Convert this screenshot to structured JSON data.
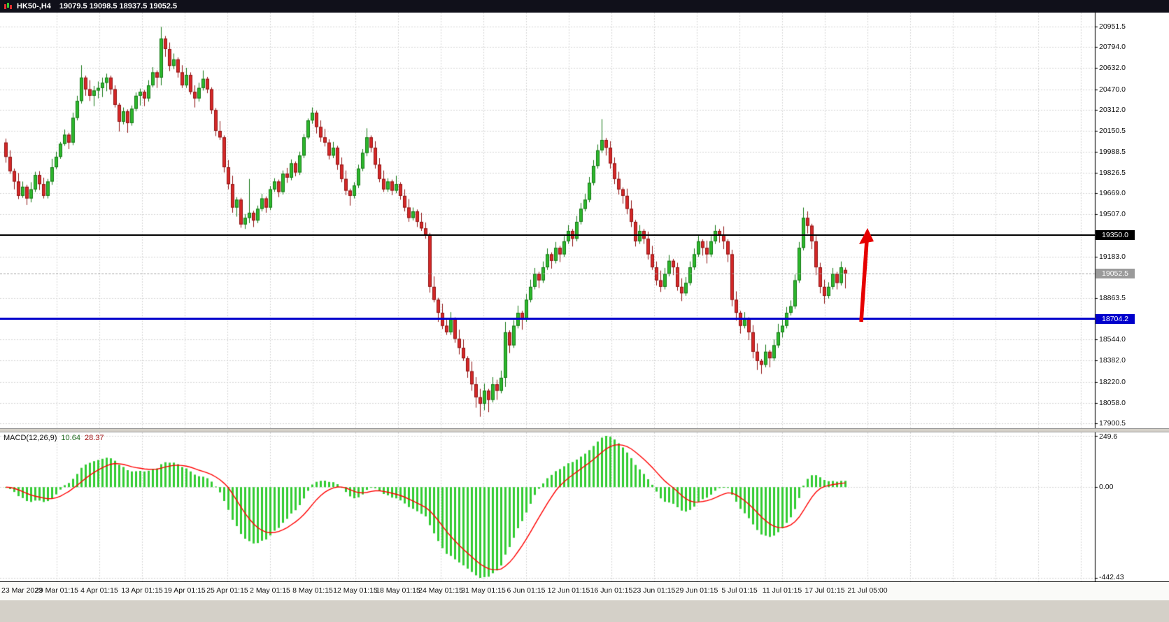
{
  "titlebar": {
    "symbol_timeframe": "HK50-,H4",
    "ohlc_readout": "19079.5 19098.5 18937.5 19052.5"
  },
  "macd_panel": {
    "label": "MACD(12,26,9)",
    "main_value": "10.64",
    "signal_value": "28.37"
  },
  "colors": {
    "window_bg": "#d4d0c8",
    "titlebar_bg": "#10101a",
    "titlebar_text": "#ffffff",
    "chart_bg": "#ffffff",
    "grid": "#d6d6d6",
    "axis_text": "#111111",
    "bull_fill": "#2db82d",
    "bull_edge": "#157815",
    "bear_fill": "#d62828",
    "bear_edge": "#8f1414",
    "macd_histogram": "#33cc33",
    "macd_signal": "#ff0000",
    "arrow": "#e60000",
    "resistance_line": "#000000",
    "support_line": "#0000cc",
    "bid_tag": "#9a9a9a"
  },
  "chart_data": {
    "type": "candlestick",
    "title": "HK50-,H4",
    "symbol": "HK50-",
    "timeframe": "H4",
    "last_candle_ohlc": [
      19079.5,
      19098.5,
      18937.5,
      19052.5
    ],
    "grid": true,
    "y_axis": {
      "side": "right",
      "visible_range": [
        17862,
        21060
      ],
      "tick_labels": [
        "20951.5",
        "20794.0",
        "20632.0",
        "20470.0",
        "20312.0",
        "20150.5",
        "19988.5",
        "19826.5",
        "19669.0",
        "19507.0",
        "19183.0",
        "18863.5",
        "18544.0",
        "18382.0",
        "18220.0",
        "18058.0",
        "17900.5"
      ]
    },
    "x_axis": {
      "tick_labels": [
        "23 Mar 2023",
        "29 Mar 01:15",
        "4 Apr 01:15",
        "13 Apr 01:15",
        "19 Apr 01:15",
        "25 Apr 01:15",
        "2 May 01:15",
        "8 May 01:15",
        "12 May 01:15",
        "18 May 01:15",
        "24 May 01:15",
        "31 May 01:15",
        "6 Jun 01:15",
        "12 Jun 01:15",
        "16 Jun 01:15",
        "23 Jun 01:15",
        "29 Jun 01:15",
        "5 Jul 01:15",
        "11 Jul 01:15",
        "17 Jul 01:15",
        "21 Jul 05:00"
      ]
    },
    "candles": [
      [
        20060,
        20090,
        19905,
        19950
      ],
      [
        19950,
        20000,
        19820,
        19840
      ],
      [
        19840,
        19860,
        19700,
        19760
      ],
      [
        19760,
        19825,
        19625,
        19650
      ],
      [
        19650,
        19760,
        19635,
        19720
      ],
      [
        19720,
        19735,
        19580,
        19630
      ],
      [
        19630,
        19755,
        19600,
        19700
      ],
      [
        19700,
        19835,
        19680,
        19810
      ],
      [
        19810,
        19840,
        19695,
        19740
      ],
      [
        19740,
        19790,
        19630,
        19650
      ],
      [
        19650,
        19780,
        19630,
        19760
      ],
      [
        19760,
        19935,
        19735,
        19870
      ],
      [
        19870,
        19990,
        19855,
        19950
      ],
      [
        19950,
        20065,
        19935,
        20050
      ],
      [
        20050,
        20160,
        20035,
        20120
      ],
      [
        20120,
        20135,
        20010,
        20060
      ],
      [
        20060,
        20290,
        20040,
        20250
      ],
      [
        20250,
        20420,
        20230,
        20380
      ],
      [
        20380,
        20655,
        20360,
        20560
      ],
      [
        20560,
        20575,
        20420,
        20470
      ],
      [
        20470,
        20540,
        20380,
        20420
      ],
      [
        20420,
        20495,
        20340,
        20460
      ],
      [
        20460,
        20530,
        20400,
        20480
      ],
      [
        20480,
        20560,
        20410,
        20520
      ],
      [
        20520,
        20590,
        20455,
        20560
      ],
      [
        20560,
        20575,
        20430,
        20470
      ],
      [
        20470,
        20500,
        20330,
        20350
      ],
      [
        20350,
        20365,
        20145,
        20220
      ],
      [
        20220,
        20330,
        20200,
        20300
      ],
      [
        20300,
        20315,
        20135,
        20210
      ],
      [
        20210,
        20345,
        20190,
        20320
      ],
      [
        20320,
        20445,
        20300,
        20420
      ],
      [
        20420,
        20475,
        20345,
        20450
      ],
      [
        20450,
        20465,
        20340,
        20400
      ],
      [
        20400,
        20540,
        20375,
        20500
      ],
      [
        20500,
        20640,
        20485,
        20600
      ],
      [
        20600,
        20615,
        20480,
        20560
      ],
      [
        20560,
        20950,
        20500,
        20860
      ],
      [
        20860,
        20880,
        20720,
        20780
      ],
      [
        20780,
        20830,
        20610,
        20650
      ],
      [
        20650,
        20745,
        20625,
        20700
      ],
      [
        20700,
        20715,
        20560,
        20600
      ],
      [
        20600,
        20655,
        20480,
        20500
      ],
      [
        20500,
        20635,
        20480,
        20580
      ],
      [
        20580,
        20600,
        20430,
        20450
      ],
      [
        20450,
        20500,
        20330,
        20400
      ],
      [
        20400,
        20520,
        20375,
        20480
      ],
      [
        20480,
        20615,
        20460,
        20550
      ],
      [
        20550,
        20565,
        20440,
        20470
      ],
      [
        20470,
        20485,
        20280,
        20310
      ],
      [
        20310,
        20325,
        20110,
        20150
      ],
      [
        20150,
        20225,
        20080,
        20100
      ],
      [
        20100,
        20115,
        19830,
        19870
      ],
      [
        19870,
        19925,
        19700,
        19740
      ],
      [
        19740,
        19805,
        19520,
        19560
      ],
      [
        19560,
        19640,
        19490,
        19620
      ],
      [
        19620,
        19635,
        19405,
        19430
      ],
      [
        19430,
        19510,
        19395,
        19480
      ],
      [
        19480,
        19780,
        19440,
        19520
      ],
      [
        19520,
        19535,
        19410,
        19460
      ],
      [
        19460,
        19575,
        19440,
        19550
      ],
      [
        19550,
        19665,
        19530,
        19630
      ],
      [
        19630,
        19645,
        19520,
        19560
      ],
      [
        19560,
        19725,
        19540,
        19700
      ],
      [
        19700,
        19785,
        19680,
        19760
      ],
      [
        19760,
        19775,
        19640,
        19680
      ],
      [
        19680,
        19845,
        19660,
        19820
      ],
      [
        19820,
        19865,
        19750,
        19790
      ],
      [
        19790,
        19930,
        19770,
        19900
      ],
      [
        19900,
        19915,
        19800,
        19830
      ],
      [
        19830,
        19990,
        19810,
        19960
      ],
      [
        19960,
        20125,
        19940,
        20100
      ],
      [
        20100,
        20245,
        20085,
        20230
      ],
      [
        20230,
        20330,
        20205,
        20290
      ],
      [
        20290,
        20305,
        20130,
        20180
      ],
      [
        20180,
        20230,
        20065,
        20100
      ],
      [
        20100,
        20165,
        20030,
        20060
      ],
      [
        20060,
        20085,
        19930,
        19960
      ],
      [
        19960,
        20065,
        19940,
        20020
      ],
      [
        20020,
        20035,
        19850,
        19890
      ],
      [
        19890,
        19945,
        19755,
        19780
      ],
      [
        19780,
        19845,
        19655,
        19690
      ],
      [
        19690,
        19705,
        19575,
        19650
      ],
      [
        19650,
        19755,
        19630,
        19730
      ],
      [
        19730,
        19890,
        19710,
        19860
      ],
      [
        19860,
        20010,
        19840,
        19980
      ],
      [
        19980,
        20170,
        19955,
        20100
      ],
      [
        20100,
        20115,
        19985,
        20020
      ],
      [
        20020,
        20070,
        19860,
        19890
      ],
      [
        19890,
        19940,
        19755,
        19780
      ],
      [
        19780,
        19845,
        19680,
        19700
      ],
      [
        19700,
        19785,
        19680,
        19760
      ],
      [
        19760,
        19775,
        19655,
        19690
      ],
      [
        19690,
        19805,
        19670,
        19740
      ],
      [
        19740,
        19755,
        19620,
        19650
      ],
      [
        19650,
        19700,
        19530,
        19560
      ],
      [
        19560,
        19625,
        19450,
        19480
      ],
      [
        19480,
        19560,
        19460,
        19530
      ],
      [
        19530,
        19545,
        19410,
        19450
      ],
      [
        19450,
        19520,
        19380,
        19400
      ],
      [
        19400,
        19445,
        19320,
        19350
      ],
      [
        19350,
        19365,
        18905,
        18950
      ],
      [
        18950,
        19030,
        18830,
        18850
      ],
      [
        18850,
        18865,
        18680,
        18750
      ],
      [
        18750,
        18820,
        18625,
        18650
      ],
      [
        18650,
        18705,
        18580,
        18600
      ],
      [
        18600,
        18755,
        18580,
        18700
      ],
      [
        18700,
        18715,
        18520,
        18550
      ],
      [
        18550,
        18620,
        18430,
        18480
      ],
      [
        18480,
        18545,
        18380,
        18400
      ],
      [
        18400,
        18415,
        18250,
        18300
      ],
      [
        18300,
        18375,
        18150,
        18200
      ],
      [
        18200,
        18255,
        18020,
        18100
      ],
      [
        18100,
        18165,
        17950,
        18050
      ],
      [
        18050,
        18205,
        18000,
        18150
      ],
      [
        18150,
        18165,
        17985,
        18080
      ],
      [
        18080,
        18255,
        18060,
        18200
      ],
      [
        18200,
        18235,
        18080,
        18150
      ],
      [
        18150,
        18305,
        18130,
        18250
      ],
      [
        18250,
        18680,
        18180,
        18600
      ],
      [
        18600,
        18615,
        18440,
        18500
      ],
      [
        18500,
        18695,
        18480,
        18650
      ],
      [
        18650,
        18805,
        18630,
        18750
      ],
      [
        18750,
        18765,
        18620,
        18700
      ],
      [
        18700,
        18895,
        18680,
        18850
      ],
      [
        18850,
        19005,
        18830,
        18950
      ],
      [
        18950,
        19095,
        18930,
        19050
      ],
      [
        19050,
        19065,
        18940,
        19000
      ],
      [
        19000,
        19145,
        18980,
        19100
      ],
      [
        19100,
        19245,
        19080,
        19200
      ],
      [
        19200,
        19215,
        19090,
        19150
      ],
      [
        19150,
        19295,
        19130,
        19250
      ],
      [
        19250,
        19265,
        19140,
        19200
      ],
      [
        19200,
        19345,
        19180,
        19300
      ],
      [
        19300,
        19425,
        19280,
        19380
      ],
      [
        19380,
        19395,
        19260,
        19320
      ],
      [
        19320,
        19495,
        19300,
        19450
      ],
      [
        19450,
        19595,
        19430,
        19550
      ],
      [
        19550,
        19665,
        19530,
        19620
      ],
      [
        19620,
        19795,
        19600,
        19750
      ],
      [
        19750,
        19925,
        19730,
        19880
      ],
      [
        19880,
        20045,
        19860,
        20000
      ],
      [
        20000,
        20240,
        19980,
        20080
      ],
      [
        20080,
        20095,
        19960,
        20020
      ],
      [
        20020,
        20070,
        19860,
        19900
      ],
      [
        19900,
        19945,
        19740,
        19780
      ],
      [
        19780,
        19835,
        19660,
        19700
      ],
      [
        19700,
        19715,
        19590,
        19650
      ],
      [
        19650,
        19705,
        19510,
        19550
      ],
      [
        19550,
        19615,
        19410,
        19450
      ],
      [
        19450,
        19465,
        19260,
        19300
      ],
      [
        19300,
        19425,
        19280,
        19380
      ],
      [
        19380,
        19395,
        19280,
        19320
      ],
      [
        19320,
        19375,
        19160,
        19200
      ],
      [
        19200,
        19265,
        19080,
        19100
      ],
      [
        19100,
        19145,
        18960,
        19000
      ],
      [
        19000,
        19075,
        18910,
        18950
      ],
      [
        18950,
        19095,
        18930,
        19050
      ],
      [
        19050,
        19195,
        19030,
        19150
      ],
      [
        19150,
        19165,
        19040,
        19100
      ],
      [
        19100,
        19135,
        18920,
        18950
      ],
      [
        18950,
        19015,
        18840,
        18900
      ],
      [
        18900,
        19025,
        18880,
        18980
      ],
      [
        18980,
        19145,
        18960,
        19100
      ],
      [
        19100,
        19245,
        19080,
        19200
      ],
      [
        19200,
        19345,
        19180,
        19300
      ],
      [
        19300,
        19315,
        19190,
        19250
      ],
      [
        19250,
        19305,
        19130,
        19200
      ],
      [
        19200,
        19345,
        19180,
        19300
      ],
      [
        19300,
        19425,
        19280,
        19380
      ],
      [
        19380,
        19395,
        19290,
        19350
      ],
      [
        19350,
        19415,
        19240,
        19300
      ],
      [
        19300,
        19315,
        19140,
        19200
      ],
      [
        19200,
        19235,
        18800,
        18850
      ],
      [
        18850,
        18915,
        18690,
        18750
      ],
      [
        18750,
        18765,
        18590,
        18650
      ],
      [
        18650,
        18755,
        18630,
        18700
      ],
      [
        18700,
        18715,
        18540,
        18600
      ],
      [
        18600,
        18655,
        18400,
        18450
      ],
      [
        18450,
        18515,
        18310,
        18380
      ],
      [
        18380,
        18395,
        18280,
        18350
      ],
      [
        18350,
        18505,
        18330,
        18450
      ],
      [
        18450,
        18465,
        18330,
        18400
      ],
      [
        18400,
        18545,
        18380,
        18500
      ],
      [
        18500,
        18665,
        18480,
        18600
      ],
      [
        18600,
        18705,
        18560,
        18650
      ],
      [
        18650,
        18795,
        18630,
        18750
      ],
      [
        18750,
        18845,
        18730,
        18800
      ],
      [
        18800,
        19045,
        18780,
        19000
      ],
      [
        19000,
        19295,
        18980,
        19250
      ],
      [
        19250,
        19560,
        19230,
        19480
      ],
      [
        19480,
        19530,
        19360,
        19420
      ],
      [
        19420,
        19435,
        19240,
        19300
      ],
      [
        19300,
        19345,
        19040,
        19100
      ],
      [
        19100,
        19135,
        18900,
        18950
      ],
      [
        18950,
        19005,
        18820,
        18880
      ],
      [
        18880,
        18985,
        18860,
        18950
      ],
      [
        18950,
        19095,
        18930,
        19050
      ],
      [
        19050,
        19065,
        18930,
        18980
      ],
      [
        18980,
        19145,
        18960,
        19100
      ],
      [
        19079.5,
        19098.5,
        18937.5,
        19052.5
      ]
    ],
    "overlays": [
      {
        "type": "hline",
        "role": "resistance",
        "price": 19350.0,
        "color": "#000000",
        "width": 2,
        "tag": "19350.0"
      },
      {
        "type": "hline",
        "role": "support",
        "price": 18704.2,
        "color": "#0000cc",
        "width": 3,
        "tag": "18704.2"
      },
      {
        "type": "bid_line",
        "price": 19052.5,
        "color": "#9a9a9a",
        "style": "dashed",
        "tag": "19052.5"
      },
      {
        "type": "arrow",
        "direction": "up",
        "color": "#e60000",
        "from_price": 18704.2,
        "to_price": 19350.0,
        "time_index": 204
      }
    ],
    "indicators": [
      {
        "name": "MACD",
        "params": [
          12,
          26,
          9
        ],
        "current_main": 10.64,
        "current_signal": 28.37,
        "axis_labels": [
          "249.6",
          "0.00",
          "-442.43"
        ],
        "histogram_color": "#33cc33",
        "signal_line_color": "#ff0000"
      }
    ]
  }
}
